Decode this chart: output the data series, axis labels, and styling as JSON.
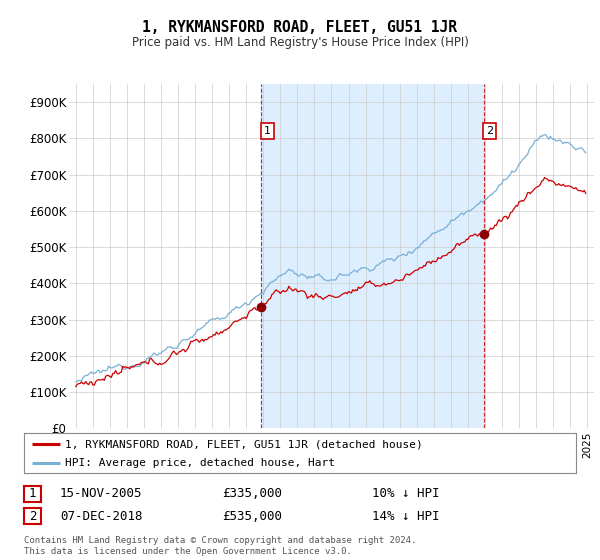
{
  "title": "1, RYKMANSFORD ROAD, FLEET, GU51 1JR",
  "subtitle": "Price paid vs. HM Land Registry's House Price Index (HPI)",
  "legend_line1": "1, RYKMANSFORD ROAD, FLEET, GU51 1JR (detached house)",
  "legend_line2": "HPI: Average price, detached house, Hart",
  "footnote": "Contains HM Land Registry data © Crown copyright and database right 2024.\nThis data is licensed under the Open Government Licence v3.0.",
  "transaction1_date": "15-NOV-2005",
  "transaction1_price": "£335,000",
  "transaction1_hpi": "10% ↓ HPI",
  "transaction2_date": "07-DEC-2018",
  "transaction2_price": "£535,000",
  "transaction2_hpi": "14% ↓ HPI",
  "line_color_red": "#cc0000",
  "line_color_blue": "#7ab0d4",
  "shade_color": "#ddeeff",
  "marker_color_red": "#8b0000",
  "background_color": "#ffffff",
  "grid_color": "#cccccc",
  "ylim": [
    0,
    950000
  ],
  "yticks": [
    0,
    100000,
    200000,
    300000,
    400000,
    500000,
    600000,
    700000,
    800000,
    900000
  ],
  "ytick_labels": [
    "£0",
    "£100K",
    "£200K",
    "£300K",
    "£400K",
    "£500K",
    "£600K",
    "£700K",
    "£800K",
    "£900K"
  ],
  "transaction1_x": 2005.88,
  "transaction1_y": 335000,
  "transaction2_x": 2018.92,
  "transaction2_y": 535000,
  "xlim_left": 1994.6,
  "xlim_right": 2025.4
}
